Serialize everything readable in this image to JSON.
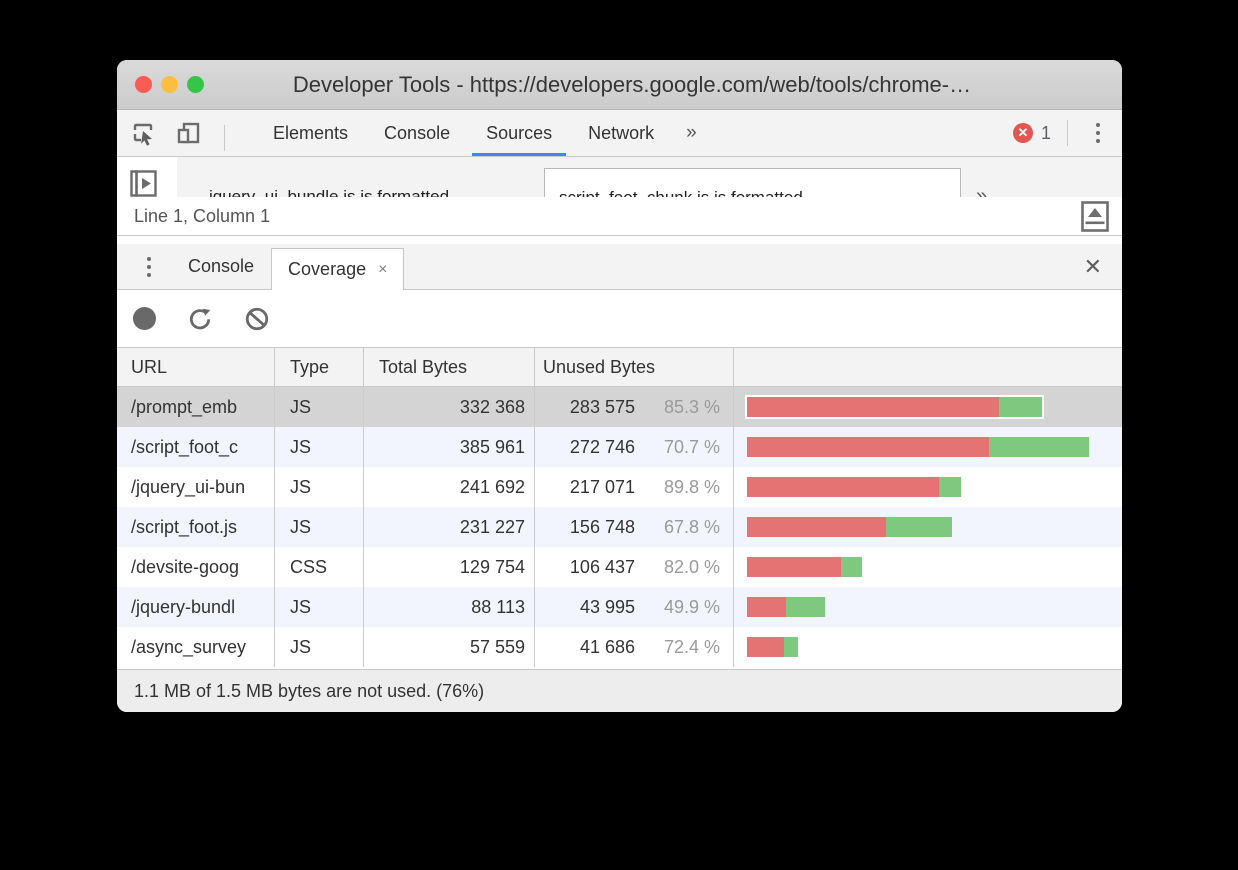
{
  "window": {
    "title": "Developer Tools - https://developers.google.com/web/tools/chrome-…",
    "traffic_lights": [
      "close",
      "minimize",
      "zoom"
    ]
  },
  "main_toolbar": {
    "icons": {
      "inspect": "inspect-cursor-icon",
      "device": "device-toolbar-icon",
      "menu": "kebab-menu-icon",
      "error": "error-circle-icon"
    },
    "tabs": [
      {
        "label": "Elements",
        "active": false
      },
      {
        "label": "Console",
        "active": false
      },
      {
        "label": "Sources",
        "active": true
      },
      {
        "label": "Network",
        "active": false
      }
    ],
    "more_symbol": "»",
    "error_count": "1"
  },
  "sources_strip": {
    "left_tab_text": "jquery_ui_bundle.js is formatted",
    "right_tab_text": "script_foot_chunk.js is formatted",
    "more_symbol": "»"
  },
  "status_bar": {
    "text": "Line 1, Column 1"
  },
  "drawer": {
    "tabs": [
      {
        "label": "Console",
        "active": false
      },
      {
        "label": "Coverage",
        "active": true,
        "close_symbol": "×"
      }
    ],
    "close_symbol": "✕"
  },
  "coverage_toolbar": {
    "icons": {
      "record": "record-icon",
      "reload": "reload-icon",
      "clear": "block-clear-icon"
    }
  },
  "table": {
    "columns": [
      "URL",
      "Type",
      "Total Bytes",
      "Unused Bytes",
      ""
    ],
    "rows": [
      {
        "url": "/prompt_emb",
        "type": "JS",
        "total": "332 368",
        "total_num": 332368,
        "unused": "283 575",
        "unused_pct": "85.3 %",
        "pct": 85.3,
        "selected": true
      },
      {
        "url": "/script_foot_c",
        "type": "JS",
        "total": "385 961",
        "total_num": 385961,
        "unused": "272 746",
        "unused_pct": "70.7 %",
        "pct": 70.7,
        "selected": false
      },
      {
        "url": "/jquery_ui-bun",
        "type": "JS",
        "total": "241 692",
        "total_num": 241692,
        "unused": "217 071",
        "unused_pct": "89.8 %",
        "pct": 89.8,
        "selected": false
      },
      {
        "url": "/script_foot.js",
        "type": "JS",
        "total": "231 227",
        "total_num": 231227,
        "unused": "156 748",
        "unused_pct": "67.8 %",
        "pct": 67.8,
        "selected": false
      },
      {
        "url": "/devsite-goog",
        "type": "CSS",
        "total": "129 754",
        "total_num": 129754,
        "unused": "106 437",
        "unused_pct": "82.0 %",
        "pct": 82.0,
        "selected": false
      },
      {
        "url": "/jquery-bundl",
        "type": "JS",
        "total": "88 113",
        "total_num": 88113,
        "unused": "43 995",
        "unused_pct": "49.9 %",
        "pct": 49.9,
        "selected": false
      },
      {
        "url": "/async_survey",
        "type": "JS",
        "total": "57 559",
        "total_num": 57559,
        "unused": "41 686",
        "unused_pct": "72.4 %",
        "pct": 72.4,
        "selected": false
      }
    ]
  },
  "footer": {
    "text": "1.1 MB of 1.5 MB bytes are not used. (76%)"
  },
  "colors": {
    "bar_red": "#e57373",
    "bar_green": "#7fc87f",
    "accent_blue": "#4285f4",
    "error_red": "#e55552",
    "selected_row": "#d4d4d4",
    "alt_row": "#f2f5fd",
    "traffic_red": "#fc5a54",
    "traffic_yellow": "#fdbe40",
    "traffic_green": "#35c649"
  }
}
